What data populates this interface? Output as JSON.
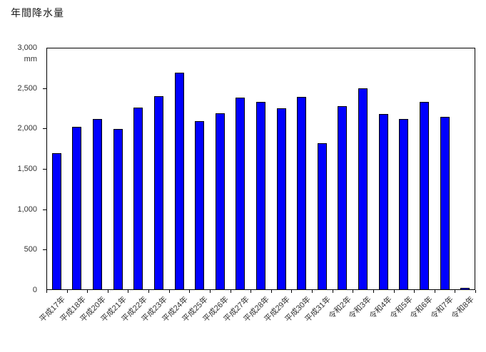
{
  "chart_data": {
    "type": "bar",
    "title": "年間降水量",
    "ylabel_unit": "mm",
    "categories": [
      "平成17年",
      "平成18年",
      "平成20年",
      "平成21年",
      "平成22年",
      "平成23年",
      "平成24年",
      "平成25年",
      "平成26年",
      "平成27年",
      "平成28年",
      "平成29年",
      "平成30年",
      "平成31年",
      "令和2年",
      "令和3年",
      "令和4年",
      "令和5年",
      "令和6年",
      "令和7年",
      "令和8年"
    ],
    "values": [
      1690,
      2020,
      2120,
      1990,
      2260,
      2400,
      2690,
      2090,
      2190,
      2380,
      2330,
      2250,
      2390,
      1820,
      2280,
      2500,
      2180,
      2120,
      2330,
      2140,
      30
    ],
    "ylim": [
      0,
      3000
    ],
    "ytick_step": 500,
    "ytick_labels": [
      "3,000",
      "2,500",
      "2,000",
      "1,500",
      "1,000",
      "500",
      "0"
    ],
    "grid": "off",
    "legend": "none",
    "bar_color": "#0000FF",
    "bar_border_color": "#000000",
    "background_color": "#FFFFFF"
  }
}
